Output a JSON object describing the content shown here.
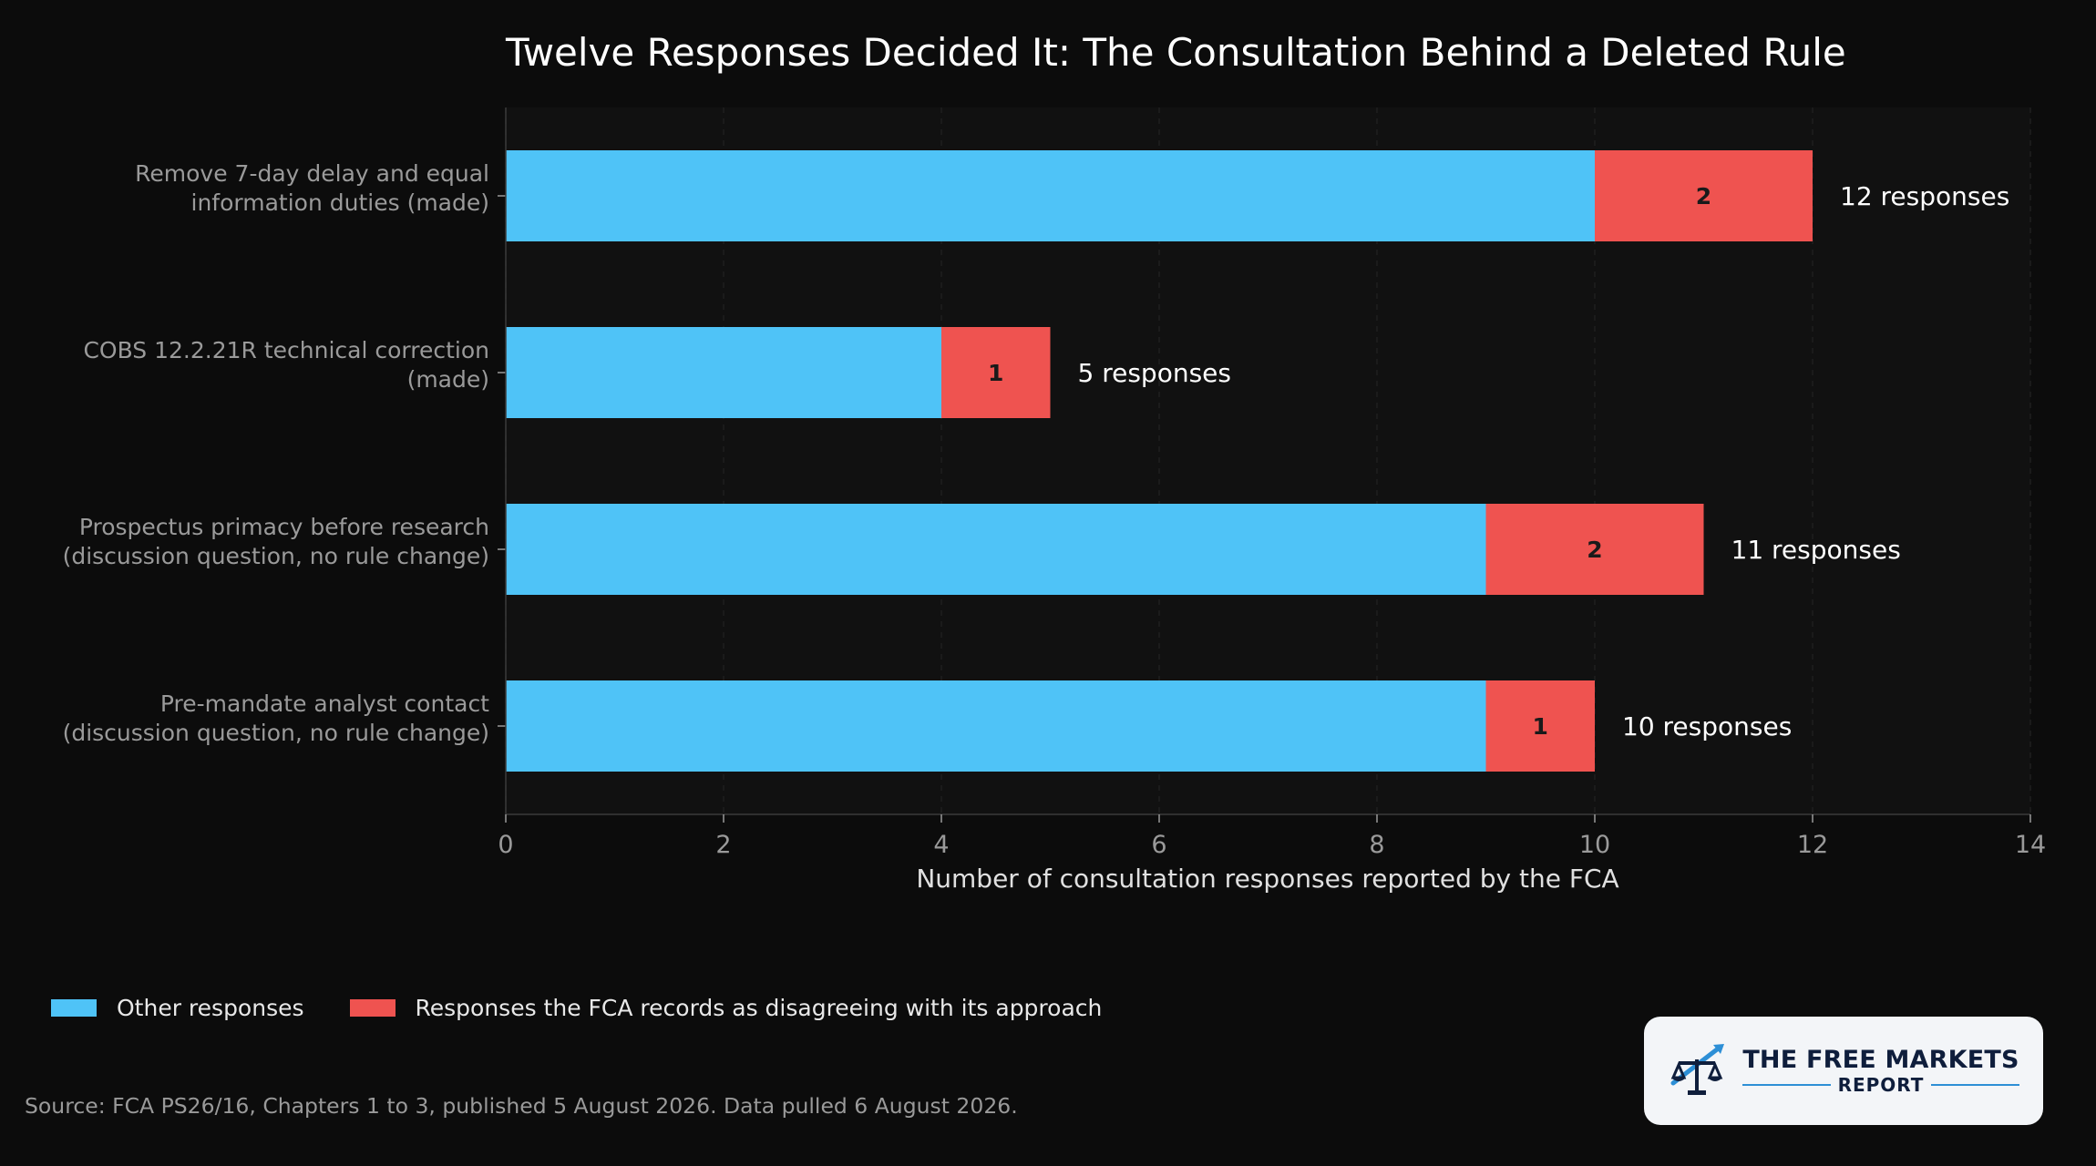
{
  "colors": {
    "background": "#0c0c0c",
    "plot_background": "#111111",
    "other": "#4fc3f7",
    "disagree": "#ef5350",
    "text": "#ffffff",
    "muted_text": "#9a9a9a"
  },
  "chart_data": {
    "type": "bar",
    "orientation": "horizontal",
    "stacked": true,
    "title": "Twelve Responses Decided It: The Consultation Behind a Deleted Rule",
    "xlabel": "Number of consultation responses reported by the FCA",
    "ylabel": "",
    "xlim": [
      0,
      14
    ],
    "xticks": [
      0,
      2,
      4,
      6,
      8,
      10,
      12,
      14
    ],
    "grid": "vertical dashed",
    "legend_position": "bottom-left",
    "categories": [
      "Remove 7-day delay and equal information duties (made)",
      "COBS 12.2.21R technical correction (made)",
      "Prospectus primacy before research (discussion question, no rule change)",
      "Pre-mandate analyst contact (discussion question, no rule change)"
    ],
    "category_lines": [
      [
        "Remove 7-day delay and equal",
        "information duties (made)"
      ],
      [
        "COBS 12.2.21R technical correction",
        "(made)"
      ],
      [
        "Prospectus primacy before research",
        "(discussion question, no rule change)"
      ],
      [
        "Pre-mandate analyst contact",
        "(discussion question, no rule change)"
      ]
    ],
    "series": [
      {
        "name": "Other responses",
        "values": [
          10,
          4,
          9,
          9
        ],
        "color": "#4fc3f7"
      },
      {
        "name": "Responses the FCA records as disagreeing with its approach",
        "values": [
          2,
          1,
          2,
          1
        ],
        "color": "#ef5350"
      }
    ],
    "segment_labels": [
      "2",
      "1",
      "2",
      "1"
    ],
    "total_labels": [
      "12 responses",
      "5 responses",
      "11 responses",
      "10 responses"
    ]
  },
  "legend": {
    "items": [
      {
        "label": "Other responses",
        "color": "#4fc3f7"
      },
      {
        "label": "Responses the FCA records as disagreeing with its approach",
        "color": "#ef5350"
      }
    ]
  },
  "source": "Source: FCA PS26/16, Chapters 1 to 3, published 5 August 2026. Data pulled 6 August 2026.",
  "logo": {
    "line1": "THE FREE MARKETS",
    "line2": "REPORT",
    "icon": "scales-with-rising-arrow-icon"
  }
}
